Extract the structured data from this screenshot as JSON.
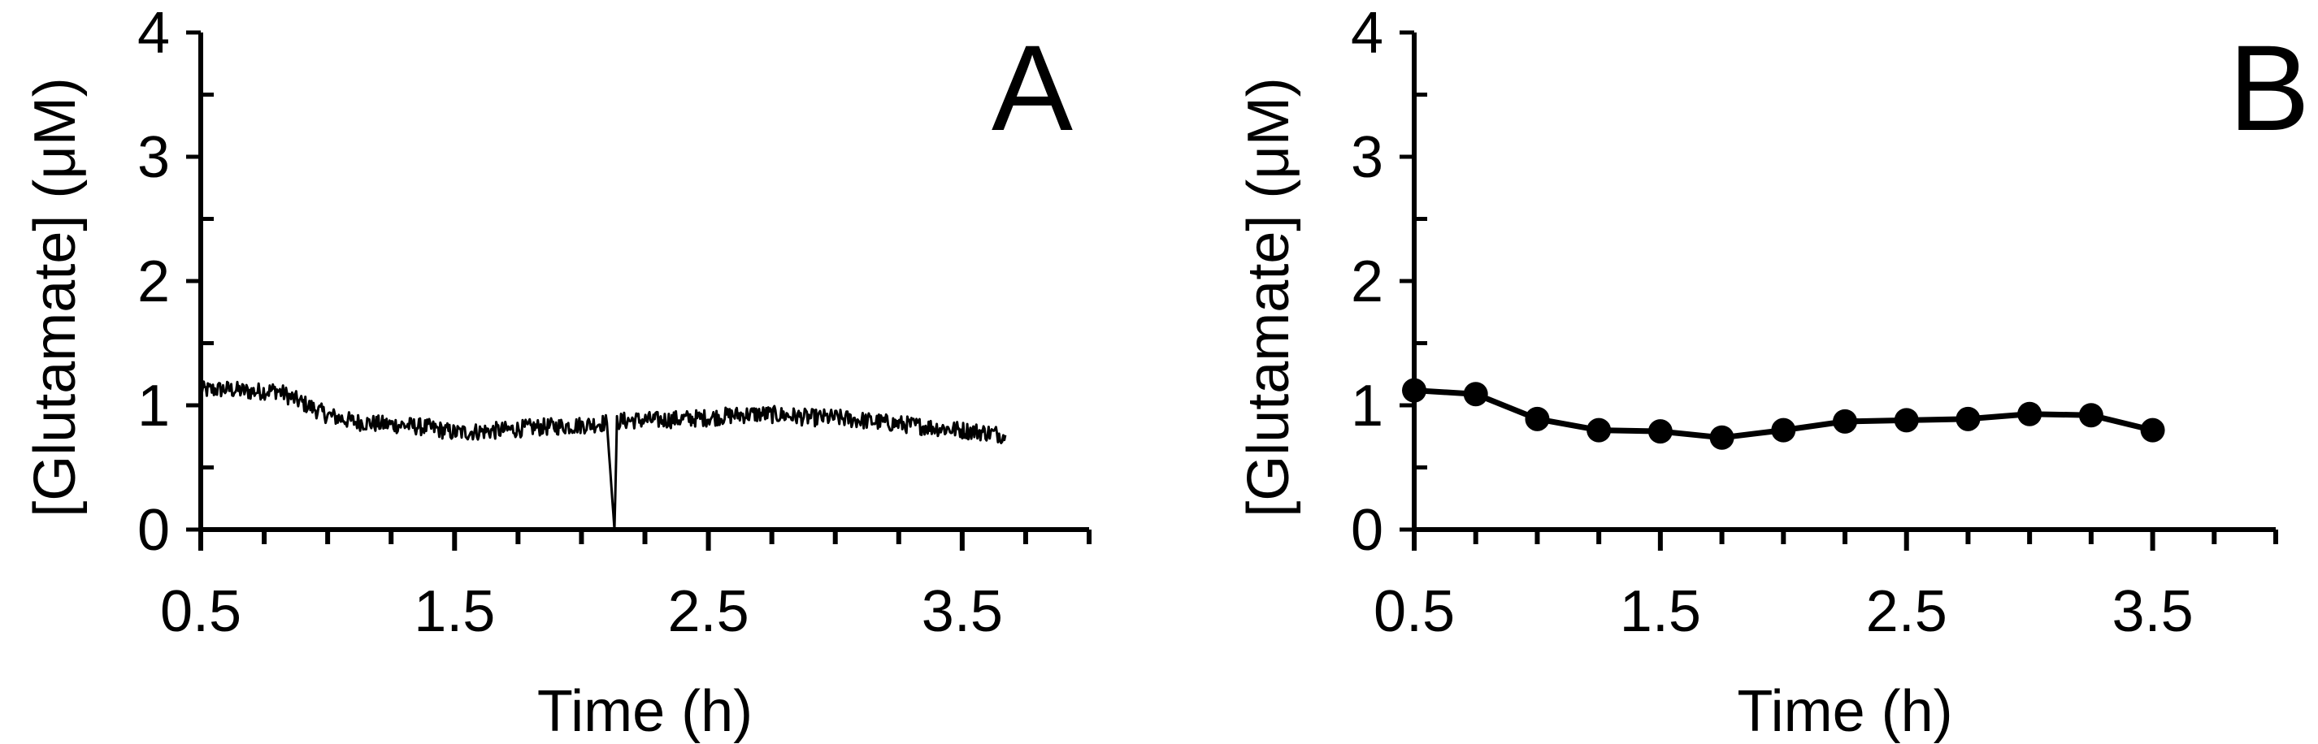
{
  "chart_data": [
    {
      "type": "line",
      "panel_label": "A",
      "xlabel": "Time (h)",
      "ylabel": "[Glutamate]  (μM)",
      "xlim": [
        0.5,
        4.0
      ],
      "ylim": [
        0,
        4
      ],
      "x_tick_labels": [
        "0.5",
        "1.5",
        "2.5",
        "3.5"
      ],
      "y_tick_labels": [
        "0",
        "1",
        "2",
        "3",
        "4"
      ],
      "grid": false,
      "line_color": "#000000",
      "series": [
        {
          "x": [
            0.5,
            0.6,
            0.7,
            0.8,
            0.9,
            1.0,
            1.1,
            1.2,
            1.3,
            1.4,
            1.5,
            1.6,
            1.7,
            1.8,
            1.9,
            2.0,
            2.1,
            2.13,
            2.14,
            2.2,
            2.3,
            2.4,
            2.5,
            2.6,
            2.7,
            2.8,
            2.9,
            3.0,
            3.1,
            3.2,
            3.3,
            3.4,
            3.5,
            3.6,
            3.67
          ],
          "y": [
            1.12,
            1.13,
            1.11,
            1.12,
            1.02,
            0.92,
            0.87,
            0.85,
            0.84,
            0.82,
            0.78,
            0.79,
            0.8,
            0.82,
            0.83,
            0.84,
            0.86,
            0.0,
            0.87,
            0.88,
            0.88,
            0.89,
            0.9,
            0.92,
            0.93,
            0.92,
            0.9,
            0.9,
            0.88,
            0.86,
            0.84,
            0.82,
            0.8,
            0.78,
            0.76
          ],
          "noise_amplitude": 0.07
        }
      ]
    },
    {
      "type": "line",
      "panel_label": "B",
      "xlabel": "Time (h)",
      "ylabel": "[Glutamate]  (μM)",
      "xlim": [
        0.5,
        4.0
      ],
      "ylim": [
        0,
        4
      ],
      "x_tick_labels": [
        "0.5",
        "1.5",
        "2.5",
        "3.5"
      ],
      "y_tick_labels": [
        "0",
        "1",
        "2",
        "3",
        "4"
      ],
      "grid": false,
      "line_color": "#000000",
      "markers": true,
      "series": [
        {
          "x": [
            0.5,
            0.75,
            1.0,
            1.25,
            1.5,
            1.75,
            2.0,
            2.25,
            2.5,
            2.75,
            3.0,
            3.25,
            3.5
          ],
          "y": [
            1.12,
            1.09,
            0.89,
            0.8,
            0.79,
            0.74,
            0.8,
            0.87,
            0.88,
            0.89,
            0.93,
            0.92,
            0.8
          ]
        }
      ]
    }
  ]
}
